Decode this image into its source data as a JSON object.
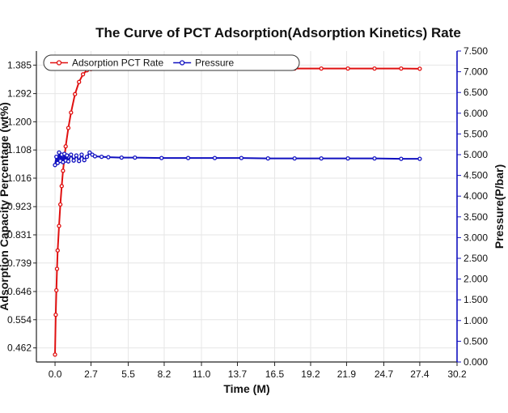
{
  "chart_data": {
    "type": "line",
    "title": "The Curve of PCT Adsorption(Adsorption Kinetics) Rate",
    "xlabel": "Time (M)",
    "ylabel": "Adsorption Capacity Percentage (wt%)",
    "y2label": "Pressure(P/bar)",
    "xlim": [
      -1.4,
      30.2
    ],
    "ylim": [
      0.416,
      1.431
    ],
    "y2lim": [
      0.0,
      7.5
    ],
    "x_ticks": [
      "0.0",
      "2.7",
      "5.5",
      "8.2",
      "11.0",
      "13.7",
      "16.5",
      "19.2",
      "21.9",
      "24.7",
      "27.4",
      "30.2"
    ],
    "y_ticks": [
      "0.462",
      "0.554",
      "0.646",
      "0.739",
      "0.831",
      "0.923",
      "1.016",
      "1.108",
      "1.200",
      "1.292",
      "1.385"
    ],
    "y2_ticks": [
      "0.000",
      "0.500",
      "1.000",
      "1.500",
      "2.000",
      "2.500",
      "3.000",
      "3.500",
      "4.000",
      "4.500",
      "5.000",
      "5.500",
      "6.000",
      "6.500",
      "7.000",
      "7.500"
    ],
    "legend_position": "top-left",
    "series": [
      {
        "name": "Adsorption PCT Rate",
        "axis": "left",
        "color": "#e01010",
        "x": [
          0.0,
          0.05,
          0.1,
          0.15,
          0.2,
          0.3,
          0.4,
          0.5,
          0.6,
          0.8,
          1.0,
          1.2,
          1.5,
          1.8,
          2.1,
          2.4,
          2.7,
          3.0,
          3.5,
          4.0,
          5.0,
          6.0,
          8.0,
          10.0,
          12.0,
          14.0,
          16.0,
          18.0,
          20.0,
          22.0,
          24.0,
          26.0,
          27.4
        ],
        "values": [
          0.44,
          0.57,
          0.65,
          0.72,
          0.78,
          0.86,
          0.93,
          0.99,
          1.04,
          1.12,
          1.18,
          1.23,
          1.29,
          1.33,
          1.355,
          1.368,
          1.372,
          1.373,
          1.373,
          1.373,
          1.373,
          1.373,
          1.373,
          1.374,
          1.374,
          1.374,
          1.374,
          1.374,
          1.374,
          1.374,
          1.374,
          1.374,
          1.373
        ]
      },
      {
        "name": "Pressure",
        "axis": "right",
        "color": "#1010c0",
        "x": [
          0.0,
          0.1,
          0.2,
          0.3,
          0.4,
          0.5,
          0.6,
          0.7,
          0.8,
          0.9,
          1.0,
          1.2,
          1.4,
          1.6,
          1.8,
          2.0,
          2.2,
          2.4,
          2.6,
          2.8,
          3.0,
          3.5,
          4.0,
          5.0,
          6.0,
          8.0,
          10.0,
          12.0,
          14.0,
          16.0,
          18.0,
          20.0,
          22.0,
          24.0,
          26.0,
          27.4
        ],
        "values": [
          4.75,
          4.95,
          4.8,
          5.05,
          4.85,
          5.0,
          4.82,
          5.02,
          4.86,
          4.98,
          4.84,
          5.0,
          4.86,
          4.98,
          4.85,
          5.0,
          4.87,
          4.95,
          5.05,
          5.0,
          4.96,
          4.95,
          4.94,
          4.93,
          4.93,
          4.92,
          4.92,
          4.92,
          4.92,
          4.91,
          4.91,
          4.91,
          4.91,
          4.91,
          4.9,
          4.9
        ]
      }
    ]
  }
}
